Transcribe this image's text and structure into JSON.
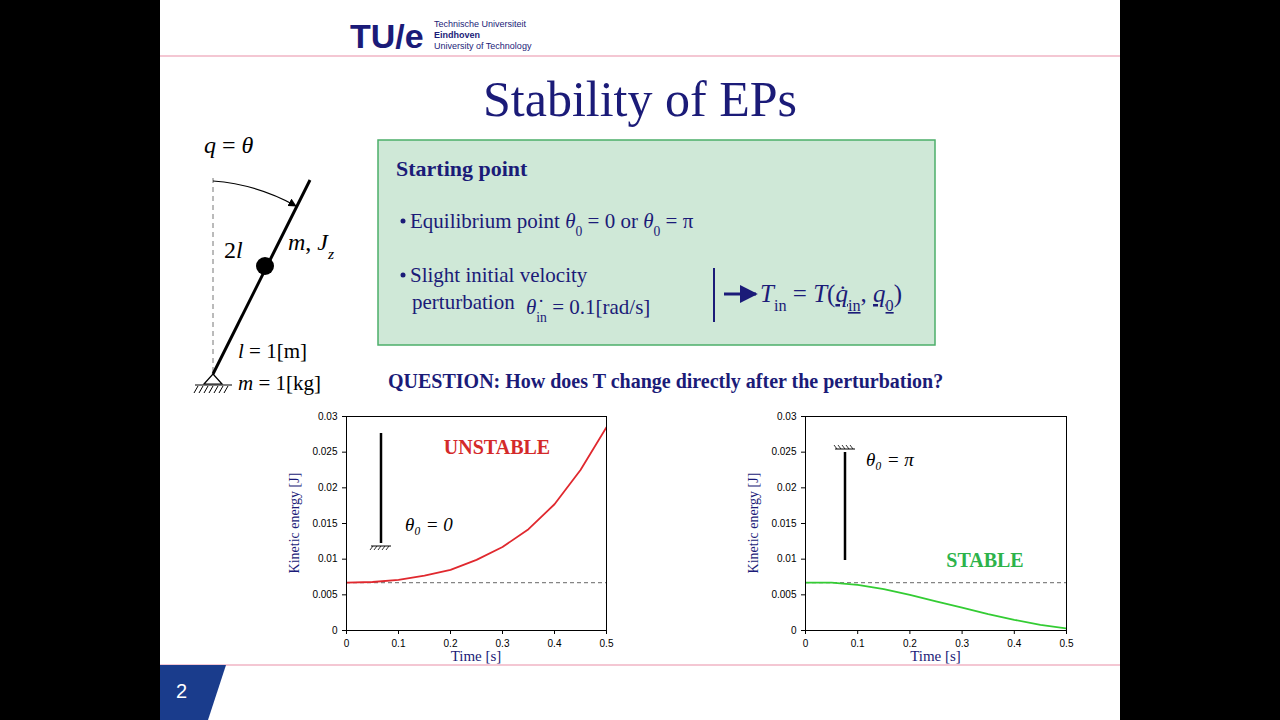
{
  "header": {
    "logo": "TU/e",
    "logo_lines": [
      "Technische Universiteit",
      "Eindhoven",
      "University of Technology"
    ],
    "title": "Stability of EPs"
  },
  "diagram": {
    "coordinate": [
      {
        "t": "q",
        "italic": true
      },
      {
        "t": " = "
      },
      {
        "t": "θ",
        "italic": true
      }
    ],
    "rod_length": [
      {
        "t": "2"
      },
      {
        "t": "l",
        "italic": true
      }
    ],
    "mass": [
      {
        "t": "m",
        "italic": true
      },
      {
        "t": ", "
      },
      {
        "t": "J",
        "italic": true
      },
      {
        "t": "z",
        "sub": true,
        "italic": true
      }
    ],
    "length_value": [
      {
        "t": "l",
        "italic": true
      },
      {
        "t": " = 1[m]"
      }
    ],
    "mass_value": [
      {
        "t": "m",
        "italic": true
      },
      {
        "t": " = 1[kg]"
      }
    ]
  },
  "box": {
    "heading": "Starting point",
    "bullet_1": [
      {
        "t": "Equilibrium point "
      },
      {
        "t": "θ",
        "italic": true
      },
      {
        "t": "0",
        "sub": true
      },
      {
        "t": " = 0"
      },
      {
        "t": " or "
      },
      {
        "t": "θ",
        "italic": true
      },
      {
        "t": "0",
        "sub": true
      },
      {
        "t": " = π"
      }
    ],
    "bullet_2_lines": [
      "Slight initial velocity",
      "perturbation"
    ],
    "bullet_2_formula": [
      {
        "t": "θ̇",
        "italic": true
      },
      {
        "t": "in",
        "sub": true
      },
      {
        "t": " = 0.1[rad/s]"
      }
    ],
    "result": [
      {
        "t": "T",
        "italic": true
      },
      {
        "t": "in",
        "sub": true
      },
      {
        "t": " = "
      },
      {
        "t": "T",
        "italic": true
      },
      {
        "t": "("
      },
      {
        "t": "q̇",
        "italic": true,
        "underline": true
      },
      {
        "t": "in",
        "sub": true,
        "underline": true
      },
      {
        "t": ", "
      },
      {
        "t": "q",
        "italic": true,
        "underline": true
      },
      {
        "t": "0",
        "sub": true,
        "underline": true
      },
      {
        "t": ")"
      }
    ]
  },
  "question": "QUESTION: How does T change directly after the perturbation?",
  "slide_number": "2",
  "chart_data": [
    {
      "type": "line",
      "x": [
        0,
        0.05,
        0.1,
        0.15,
        0.2,
        0.25,
        0.3,
        0.35,
        0.4,
        0.45,
        0.5
      ],
      "values": [
        0.0067,
        0.0068,
        0.0071,
        0.0077,
        0.0085,
        0.0099,
        0.0117,
        0.0142,
        0.0177,
        0.0225,
        0.0285
      ],
      "color": "#e0282e",
      "initial_value": 0.0067,
      "x_label": "Time [s]",
      "y_label": "Kinetic energy [J]",
      "xlim": [
        0,
        0.5
      ],
      "xticks": [
        0,
        0.1,
        0.2,
        0.3,
        0.4,
        0.5
      ],
      "ylim": [
        0,
        0.03
      ],
      "yticks": [
        0,
        0.005,
        0.01,
        0.015,
        0.02,
        0.025,
        0.03
      ],
      "grid": false,
      "annotations": [
        {
          "text": "UNSTABLE",
          "color": "#d42a2a"
        },
        {
          "text": "θ₀ = 0",
          "color": "#000000"
        }
      ]
    },
    {
      "type": "line",
      "x": [
        0,
        0.05,
        0.1,
        0.15,
        0.2,
        0.25,
        0.3,
        0.35,
        0.4,
        0.45,
        0.5
      ],
      "values": [
        0.0067,
        0.0067,
        0.0064,
        0.0058,
        0.005,
        0.0041,
        0.0032,
        0.0023,
        0.0015,
        0.0008,
        0.0003
      ],
      "color": "#33cc33",
      "initial_value": 0.0067,
      "x_label": "Time [s]",
      "y_label": "Kinetic energy [J]",
      "xlim": [
        0,
        0.5
      ],
      "xticks": [
        0,
        0.1,
        0.2,
        0.3,
        0.4,
        0.5
      ],
      "ylim": [
        0,
        0.03
      ],
      "yticks": [
        0,
        0.005,
        0.01,
        0.015,
        0.02,
        0.025,
        0.03
      ],
      "grid": false,
      "annotations": [
        {
          "text": "STABLE",
          "color": "#2db34a"
        },
        {
          "text": "θ₀ = π",
          "color": "#000000"
        }
      ]
    }
  ]
}
